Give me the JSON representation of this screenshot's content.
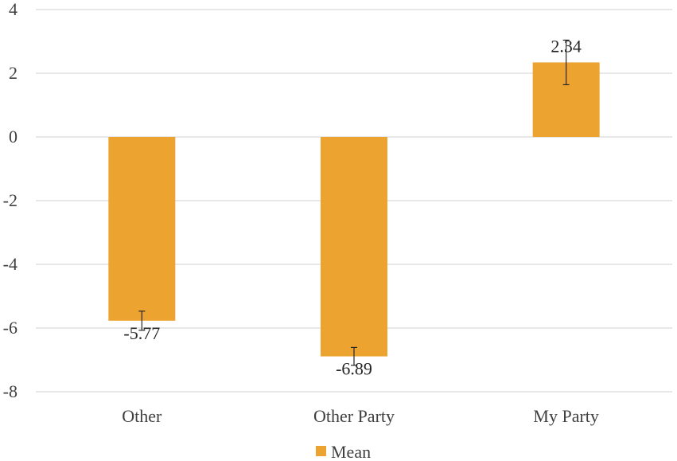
{
  "chart_data": {
    "type": "bar",
    "categories": [
      "Other",
      "Other Party",
      "My Party"
    ],
    "series": [
      {
        "name": "Mean",
        "values": [
          -5.77,
          -6.89,
          2.34
        ],
        "error_bars": [
          0.3,
          0.28,
          0.7
        ],
        "data_labels": [
          "-5.77",
          "-6.89",
          "2.34"
        ]
      }
    ],
    "ylim": [
      -8,
      4
    ],
    "yticks": [
      4,
      2,
      0,
      -2,
      -4,
      -6,
      -8
    ],
    "grid": true,
    "legend": "bottom",
    "title": "",
    "xlabel": "",
    "ylabel": "",
    "colors": {
      "bar": "#EDA32F",
      "grid": "#D9D9D9",
      "text": "#404040",
      "error_bar": "#262626"
    }
  }
}
